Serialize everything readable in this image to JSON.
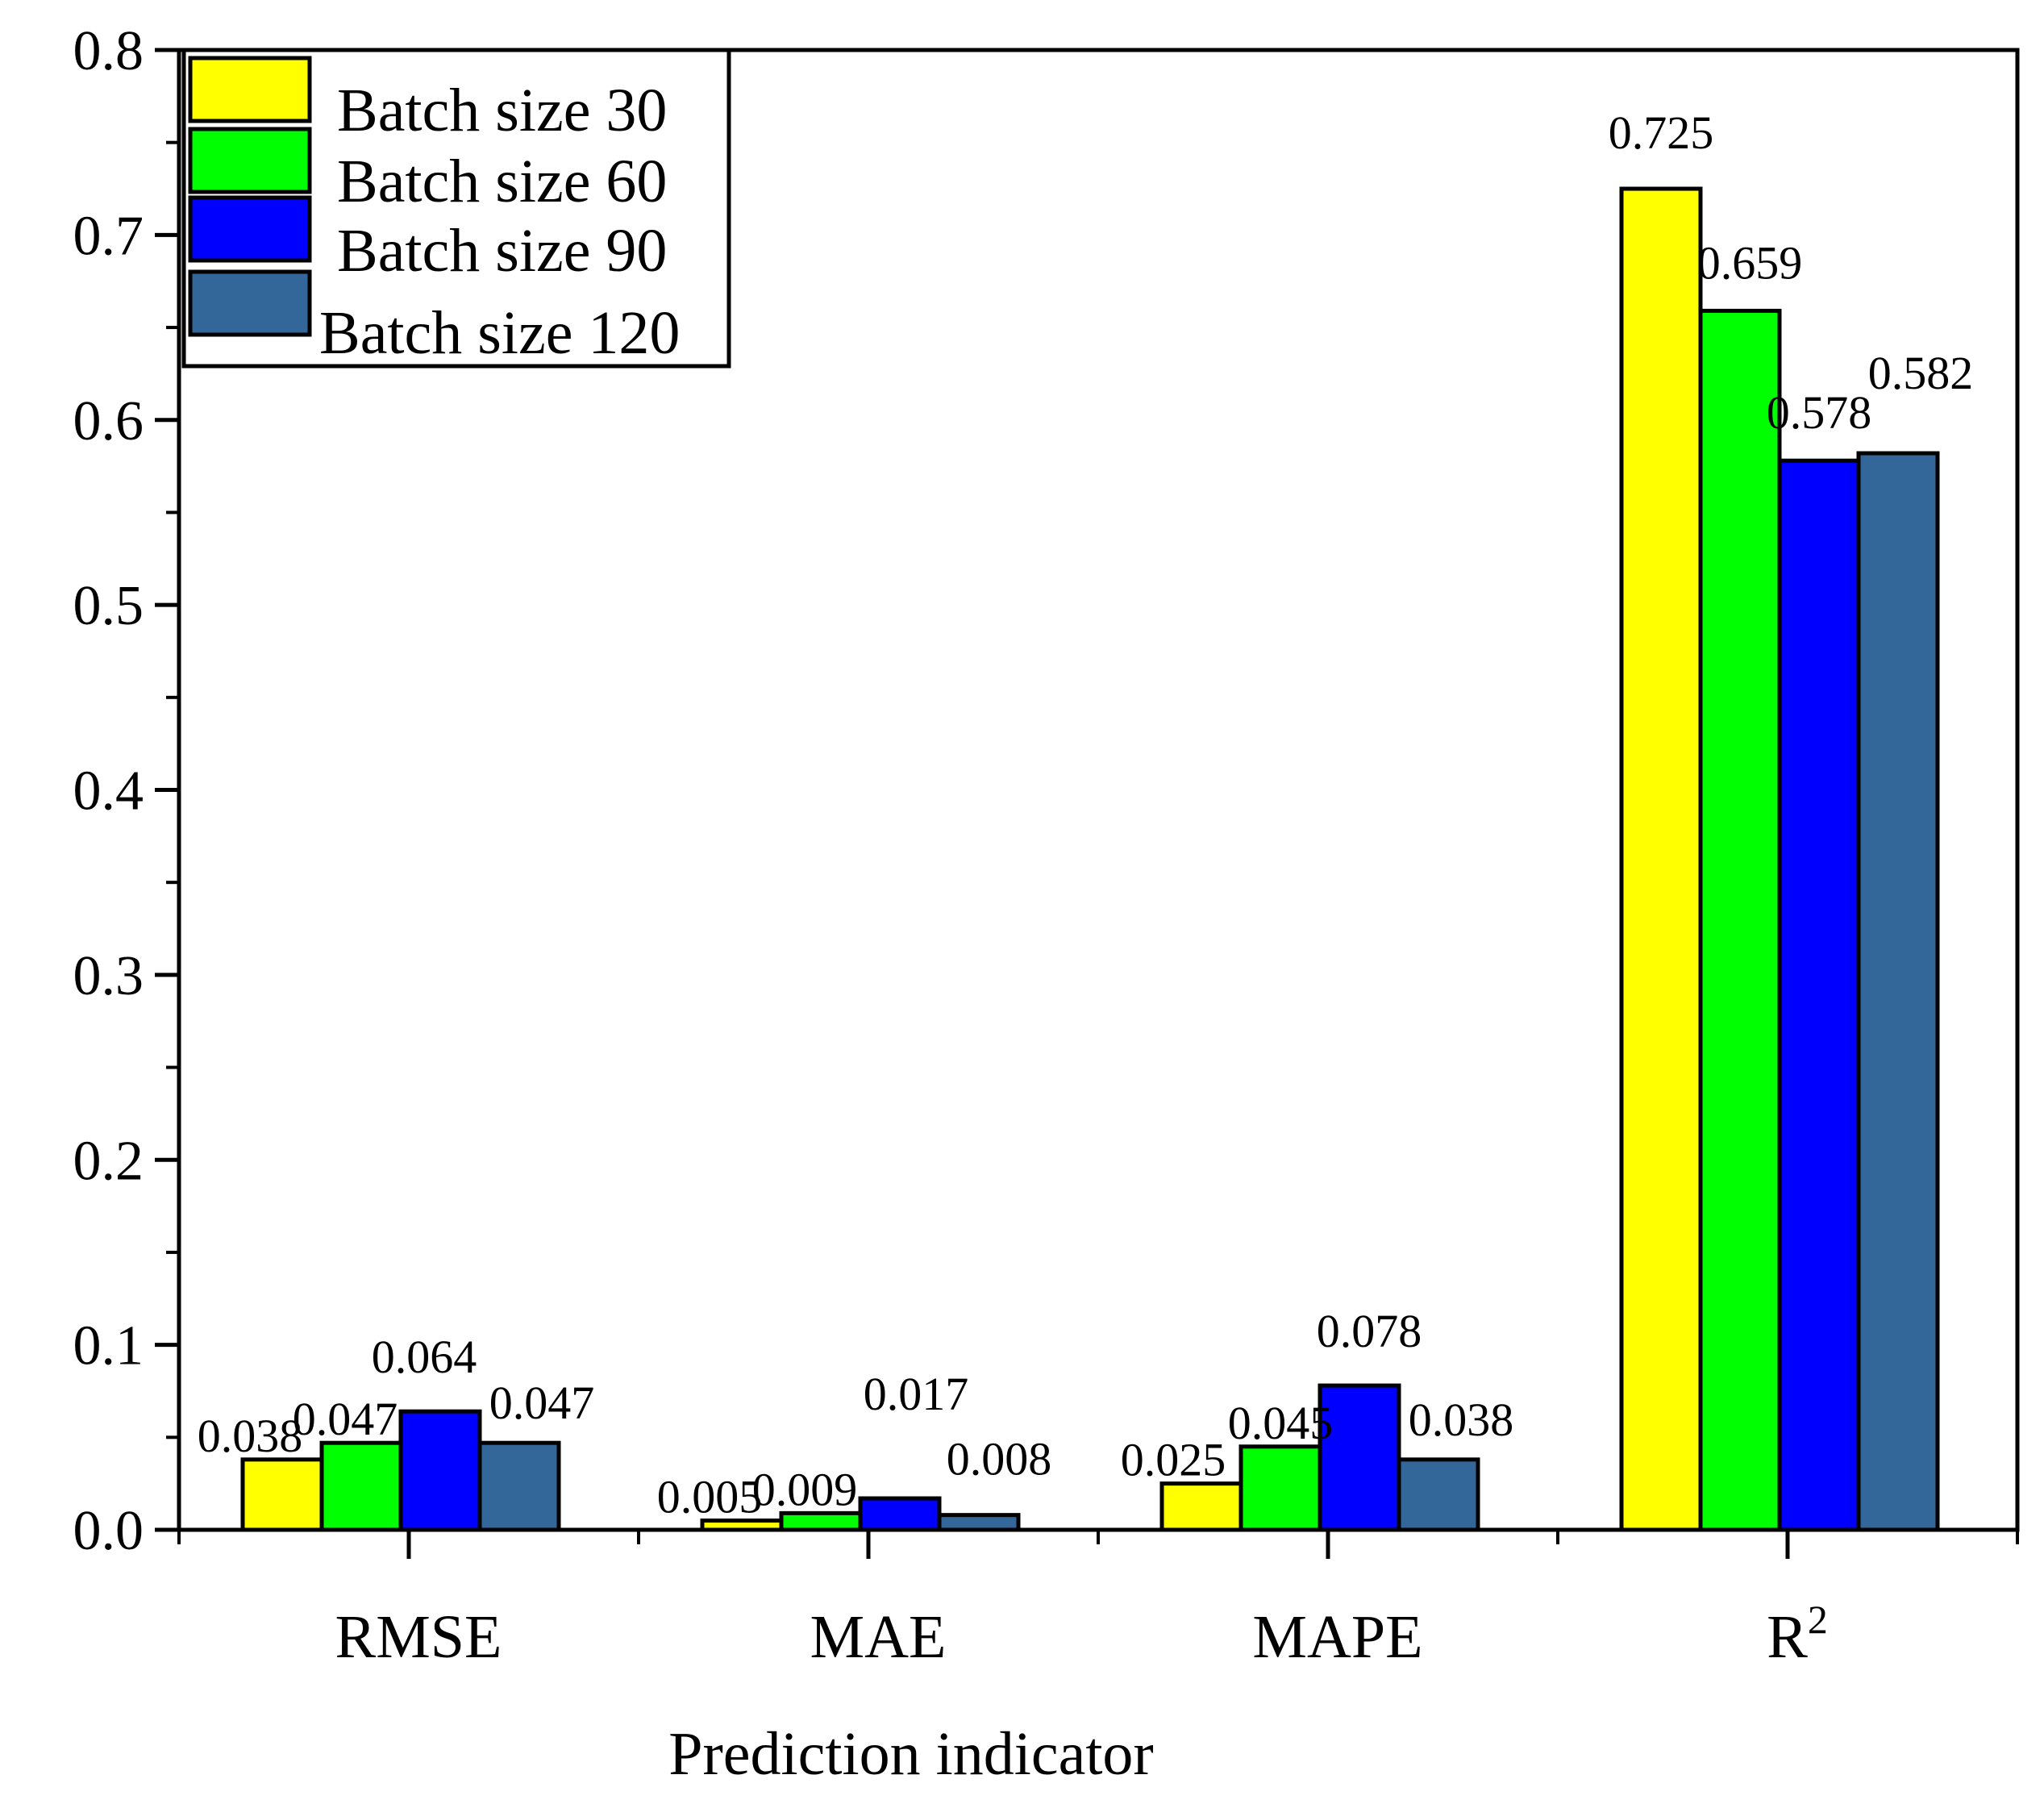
{
  "chart_data": {
    "type": "bar",
    "categories": [
      "RMSE",
      "MAE",
      "MAPE",
      "R"
    ],
    "category_superscripts": [
      "",
      "",
      "",
      "2"
    ],
    "series": [
      {
        "name": "Batch size 30",
        "color": "#ffff00",
        "values": [
          0.038,
          0.005,
          0.025,
          0.725
        ]
      },
      {
        "name": "Batch size 60",
        "color": "#00ff00",
        "values": [
          0.047,
          0.009,
          0.045,
          0.659
        ]
      },
      {
        "name": "Batch size 90",
        "color": "#0000ff",
        "values": [
          0.064,
          0.017,
          0.078,
          0.578
        ]
      },
      {
        "name": "Batch size 120",
        "color": "#336699",
        "values": [
          0.047,
          0.008,
          0.038,
          0.582
        ]
      }
    ],
    "data_labels": [
      [
        "0.038",
        "0.005",
        "0.025",
        "0.725"
      ],
      [
        "0.047",
        "0.009",
        "0.045",
        "0.659"
      ],
      [
        "0.064",
        "0.017",
        "0.078",
        "0.578"
      ],
      [
        "0.047",
        "0.008",
        "0.038",
        "0.582"
      ]
    ],
    "title": "",
    "xlabel": "Prediction indicator",
    "ylabel": "",
    "ylim": [
      0,
      0.8
    ],
    "yticks": [
      "0.0",
      "0.1",
      "0.2",
      "0.3",
      "0.4",
      "0.5",
      "0.6",
      "0.7",
      "0.8"
    ],
    "grid": false,
    "legend_position": "top-left"
  }
}
